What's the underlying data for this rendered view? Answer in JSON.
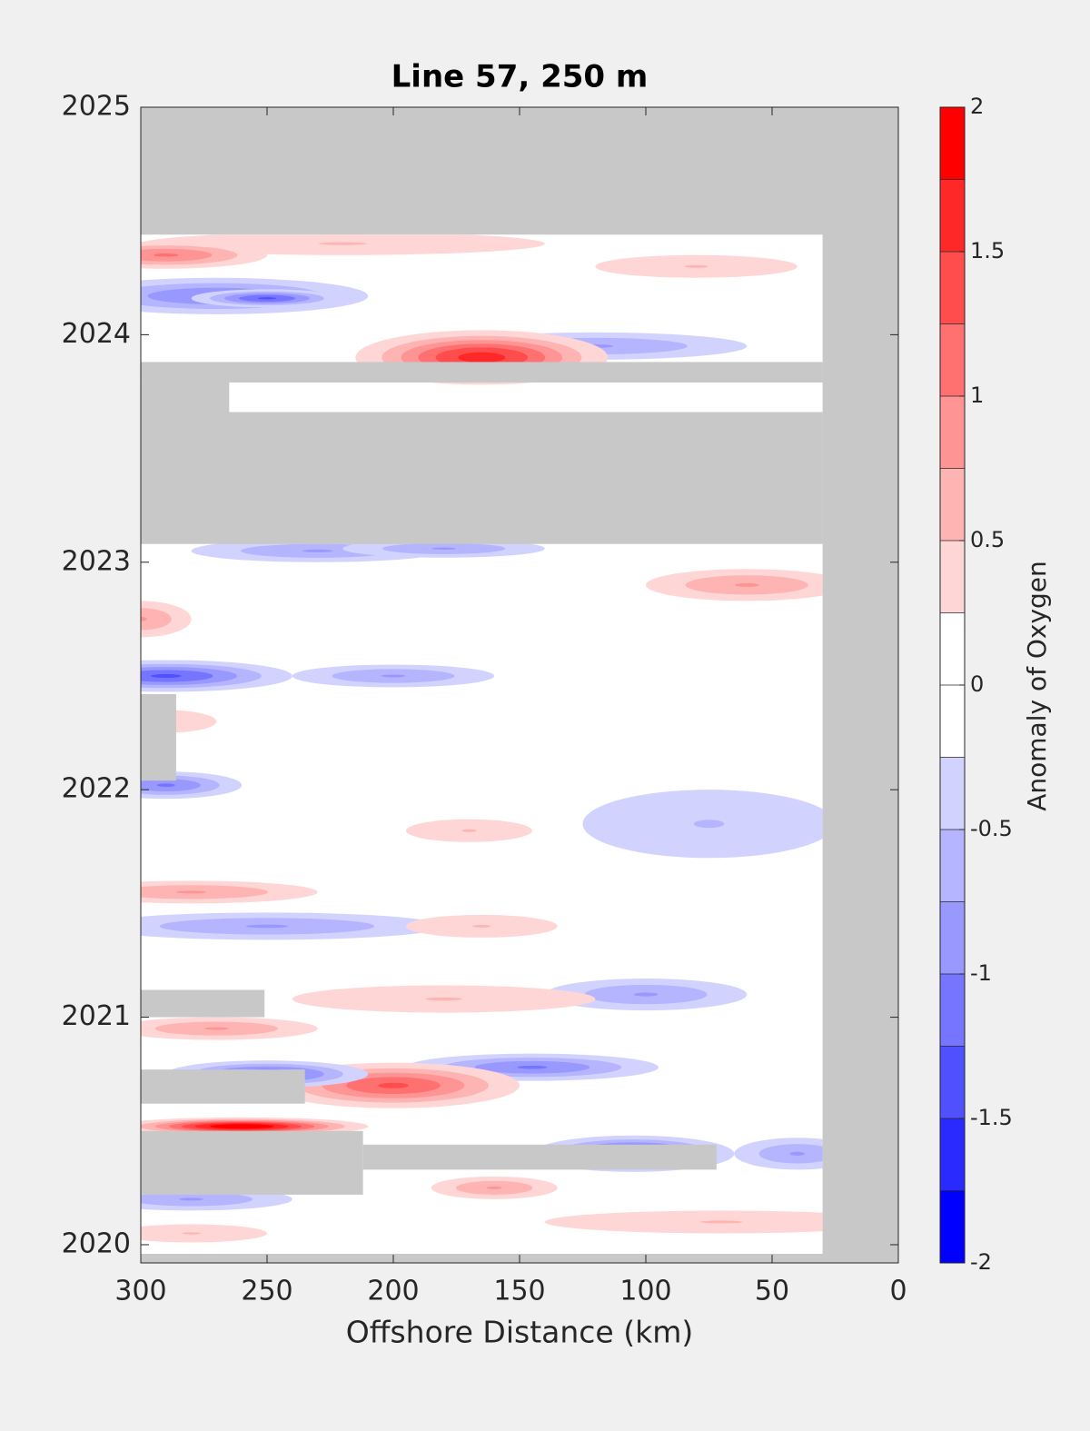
{
  "chart_data": {
    "type": "contourf",
    "title": "Line 57, 250 m",
    "xlabel": "Offshore Distance (km)",
    "colorbar_label": "Anomaly of Oxygen",
    "xlim": [
      300,
      0
    ],
    "ylim": [
      2019.92,
      2025
    ],
    "xticks": [
      300,
      250,
      200,
      150,
      100,
      50,
      0
    ],
    "yticks": [
      2020,
      2021,
      2022,
      2023,
      2024,
      2025
    ],
    "clim": [
      -2,
      2
    ],
    "cticks": [
      -2,
      -1.5,
      -1,
      -0.5,
      0,
      0.5,
      1,
      1.5,
      2
    ],
    "colors": [
      "#0000ff",
      "#2a2aff",
      "#5050ff",
      "#7575ff",
      "#9898ff",
      "#b4b4ff",
      "#d2d2ff",
      "#ffffff",
      "#ffffff",
      "#ffd6d6",
      "#ffb4b4",
      "#ff9494",
      "#ff7070",
      "#ff4c4c",
      "#ff2828",
      "#ff0000"
    ],
    "mask_color": "#c8c8c8",
    "data_extent": {
      "x": [
        300,
        30
      ],
      "y": [
        2019.96,
        2024.44
      ]
    },
    "features": [
      {
        "x": 220,
        "y": 2024.4,
        "dx": 80,
        "dy": 0.05,
        "value": 0.5
      },
      {
        "x": 80,
        "y": 2024.3,
        "dx": 40,
        "dy": 0.05,
        "value": 0.5
      },
      {
        "x": 290,
        "y": 2024.35,
        "dx": 40,
        "dy": 0.06,
        "value": 1.0
      },
      {
        "x": 270,
        "y": 2024.17,
        "dx": 60,
        "dy": 0.08,
        "value": -1.0
      },
      {
        "x": 250,
        "y": 2024.16,
        "dx": 30,
        "dy": 0.04,
        "value": -1.25
      },
      {
        "x": 120,
        "y": 2023.95,
        "dx": 60,
        "dy": 0.06,
        "value": -0.75
      },
      {
        "x": 165,
        "y": 2023.9,
        "dx": 50,
        "dy": 0.12,
        "value": 1.6
      },
      {
        "x": 230,
        "y": 2023.05,
        "dx": 50,
        "dy": 0.05,
        "value": -0.75
      },
      {
        "x": 180,
        "y": 2023.06,
        "dx": 40,
        "dy": 0.04,
        "value": -0.75
      },
      {
        "x": 60,
        "y": 2022.9,
        "dx": 40,
        "dy": 0.07,
        "value": 0.75
      },
      {
        "x": 300,
        "y": 2022.75,
        "dx": 20,
        "dy": 0.08,
        "value": 0.75
      },
      {
        "x": 290,
        "y": 2022.5,
        "dx": 50,
        "dy": 0.07,
        "value": -1.25
      },
      {
        "x": 200,
        "y": 2022.5,
        "dx": 40,
        "dy": 0.05,
        "value": -0.75
      },
      {
        "x": 290,
        "y": 2022.3,
        "dx": 20,
        "dy": 0.05,
        "value": 0.5
      },
      {
        "x": 290,
        "y": 2022.02,
        "dx": 30,
        "dy": 0.06,
        "value": -1.0
      },
      {
        "x": 75,
        "y": 2021.85,
        "dx": 50,
        "dy": 0.15,
        "value": -0.5
      },
      {
        "x": 170,
        "y": 2021.82,
        "dx": 25,
        "dy": 0.05,
        "value": 0.5
      },
      {
        "x": 280,
        "y": 2021.55,
        "dx": 50,
        "dy": 0.05,
        "value": 0.75
      },
      {
        "x": 250,
        "y": 2021.4,
        "dx": 70,
        "dy": 0.06,
        "value": -0.75
      },
      {
        "x": 165,
        "y": 2021.4,
        "dx": 30,
        "dy": 0.05,
        "value": 0.5
      },
      {
        "x": 100,
        "y": 2021.1,
        "dx": 40,
        "dy": 0.07,
        "value": -0.75
      },
      {
        "x": 180,
        "y": 2021.08,
        "dx": 60,
        "dy": 0.06,
        "value": 0.5
      },
      {
        "x": 270,
        "y": 2020.95,
        "dx": 40,
        "dy": 0.05,
        "value": 0.75
      },
      {
        "x": 145,
        "y": 2020.78,
        "dx": 50,
        "dy": 0.06,
        "value": -1.0
      },
      {
        "x": 200,
        "y": 2020.7,
        "dx": 50,
        "dy": 0.1,
        "value": 1.25
      },
      {
        "x": 250,
        "y": 2020.75,
        "dx": 40,
        "dy": 0.06,
        "value": -1.25
      },
      {
        "x": 260,
        "y": 2020.52,
        "dx": 50,
        "dy": 0.04,
        "value": 2.0
      },
      {
        "x": 105,
        "y": 2020.4,
        "dx": 40,
        "dy": 0.08,
        "value": -1.5
      },
      {
        "x": 40,
        "y": 2020.4,
        "dx": 25,
        "dy": 0.07,
        "value": -0.75
      },
      {
        "x": 160,
        "y": 2020.25,
        "dx": 25,
        "dy": 0.05,
        "value": 0.75
      },
      {
        "x": 280,
        "y": 2020.2,
        "dx": 40,
        "dy": 0.05,
        "value": -0.75
      },
      {
        "x": 70,
        "y": 2020.1,
        "dx": 70,
        "dy": 0.05,
        "value": 0.5
      },
      {
        "x": 280,
        "y": 2020.05,
        "dx": 30,
        "dy": 0.04,
        "value": 0.5
      }
    ],
    "masks": [
      {
        "x": [
          300,
          30
        ],
        "y": [
          2023.08,
          2023.66
        ]
      },
      {
        "x": [
          300,
          30
        ],
        "y": [
          2023.79,
          2023.88
        ]
      },
      {
        "x": [
          300,
          265
        ],
        "y": [
          2023.66,
          2023.79
        ]
      },
      {
        "x": [
          300,
          286
        ],
        "y": [
          2022.04,
          2022.42
        ]
      },
      {
        "x": [
          300,
          251
        ],
        "y": [
          2021.0,
          2021.12
        ]
      },
      {
        "x": [
          300,
          235
        ],
        "y": [
          2020.62,
          2020.77
        ]
      },
      {
        "x": [
          300,
          212
        ],
        "y": [
          2020.22,
          2020.5
        ]
      },
      {
        "x": [
          212,
          72
        ],
        "y": [
          2020.33,
          2020.44
        ]
      }
    ]
  }
}
